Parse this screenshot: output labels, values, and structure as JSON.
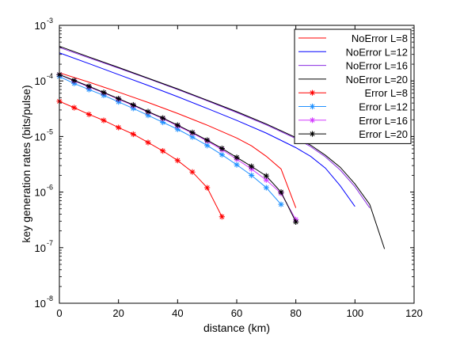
{
  "chart_data": {
    "type": "line",
    "title": "",
    "xlabel": "distance (km)",
    "ylabel": "key generation rates (bits/pulse)",
    "xlim": [
      0,
      120
    ],
    "ylim": [
      1e-08,
      0.001
    ],
    "yscale": "log",
    "grid": false,
    "legend_position": "top-right",
    "x_ticks": [
      {
        "value": 0,
        "label": "0"
      },
      {
        "value": 20,
        "label": "20"
      },
      {
        "value": 40,
        "label": "40"
      },
      {
        "value": 60,
        "label": "60"
      },
      {
        "value": 80,
        "label": "80"
      },
      {
        "value": 100,
        "label": "100"
      },
      {
        "value": 120,
        "label": "120"
      }
    ],
    "y_ticks": [
      {
        "value": 1e-08,
        "base": "10",
        "exp": "-8"
      },
      {
        "value": 1e-07,
        "base": "10",
        "exp": "-7"
      },
      {
        "value": 1e-06,
        "base": "10",
        "exp": "-6"
      },
      {
        "value": 1e-05,
        "base": "10",
        "exp": "-5"
      },
      {
        "value": 0.0001,
        "base": "10",
        "exp": "-4"
      },
      {
        "value": 0.001,
        "base": "10",
        "exp": "-3"
      }
    ],
    "series": [
      {
        "name": "NoError L=8",
        "color": "#ff0000",
        "marker": "none",
        "x": [
          0,
          10,
          20,
          30,
          40,
          50,
          60,
          65,
          70,
          75,
          80
        ],
        "y": [
          0.00014,
          9.5e-05,
          6.3e-05,
          4.1e-05,
          2.6e-05,
          1.6e-05,
          9.4e-06,
          6.8e-06,
          4.4e-06,
          2.6e-06,
          5.2e-07
        ]
      },
      {
        "name": "NoError L=12",
        "color": "#0000ff",
        "marker": "none",
        "x": [
          0,
          10,
          20,
          30,
          40,
          50,
          60,
          70,
          80,
          85,
          90,
          95,
          100
        ],
        "y": [
          0.00032,
          0.000205,
          0.00013,
          8.3e-05,
          5.2e-05,
          3.2e-05,
          1.95e-05,
          1.15e-05,
          6.3e-06,
          4.4e-06,
          2.7e-06,
          1.3e-06,
          5.5e-07
        ]
      },
      {
        "name": "NoError L=16",
        "color": "#8a2be2",
        "marker": "none",
        "x": [
          0,
          10,
          20,
          30,
          40,
          50,
          60,
          70,
          80,
          85,
          90,
          95,
          100,
          105
        ],
        "y": [
          0.0004,
          0.00026,
          0.00017,
          0.00011,
          7e-05,
          4.4e-05,
          2.7e-05,
          1.62e-05,
          9.2e-06,
          6.6e-06,
          4.3e-06,
          2.5e-06,
          1.25e-06,
          5.2e-07
        ]
      },
      {
        "name": "NoError L=20",
        "color": "#000000",
        "marker": "none",
        "x": [
          0,
          10,
          20,
          30,
          40,
          50,
          60,
          70,
          80,
          85,
          90,
          95,
          100,
          105,
          110
        ],
        "y": [
          0.00042,
          0.00027,
          0.000175,
          0.000112,
          7.2e-05,
          4.5e-05,
          2.8e-05,
          1.68e-05,
          9.6e-06,
          7e-06,
          4.6e-06,
          2.8e-06,
          1.4e-06,
          6e-07,
          9.5e-08
        ]
      },
      {
        "name": "Error L=8",
        "color": "#ff0000",
        "marker": "star",
        "x": [
          0,
          5,
          10,
          15,
          20,
          25,
          30,
          35,
          40,
          45,
          50,
          55
        ],
        "y": [
          4.3e-05,
          3.3e-05,
          2.5e-05,
          1.95e-05,
          1.45e-05,
          1.1e-05,
          7.8e-06,
          5.5e-06,
          3.7e-06,
          2.3e-06,
          1.2e-06,
          3.6e-07
        ]
      },
      {
        "name": "Error L=12",
        "color": "#1e90ff",
        "marker": "star",
        "x": [
          0,
          5,
          10,
          15,
          20,
          25,
          30,
          35,
          40,
          45,
          50,
          55,
          60,
          65,
          70,
          75
        ],
        "y": [
          0.00012,
          9e-05,
          7e-05,
          5.5e-05,
          4.2e-05,
          3.2e-05,
          2.4e-05,
          1.8e-05,
          1.35e-05,
          9.8e-06,
          6.9e-06,
          4.7e-06,
          3.1e-06,
          2e-06,
          1.2e-06,
          6e-07
        ]
      },
      {
        "name": "Error L=16",
        "color": "#d33cff",
        "marker": "star",
        "x": [
          0,
          5,
          10,
          15,
          20,
          25,
          30,
          35,
          40,
          45,
          50,
          55,
          60,
          65,
          70,
          75,
          80
        ],
        "y": [
          0.00013,
          0.0001,
          7.8e-05,
          6.1e-05,
          4.7e-05,
          3.6e-05,
          2.75e-05,
          2.1e-05,
          1.55e-05,
          1.15e-05,
          8.3e-06,
          5.8e-06,
          3.9e-06,
          2.6e-06,
          1.65e-06,
          9.5e-07,
          3.2e-07
        ]
      },
      {
        "name": "Error L=20",
        "color": "#000000",
        "marker": "star",
        "x": [
          0,
          5,
          10,
          15,
          20,
          25,
          30,
          35,
          40,
          45,
          50,
          55,
          60,
          65,
          70,
          75,
          80
        ],
        "y": [
          0.00013,
          0.000102,
          8e-05,
          6.2e-05,
          4.8e-05,
          3.7e-05,
          2.8e-05,
          2.15e-05,
          1.6e-05,
          1.18e-05,
          8.6e-06,
          6.1e-06,
          4.2e-06,
          2.9e-06,
          1.95e-06,
          1e-06,
          2.9e-07
        ]
      }
    ]
  }
}
